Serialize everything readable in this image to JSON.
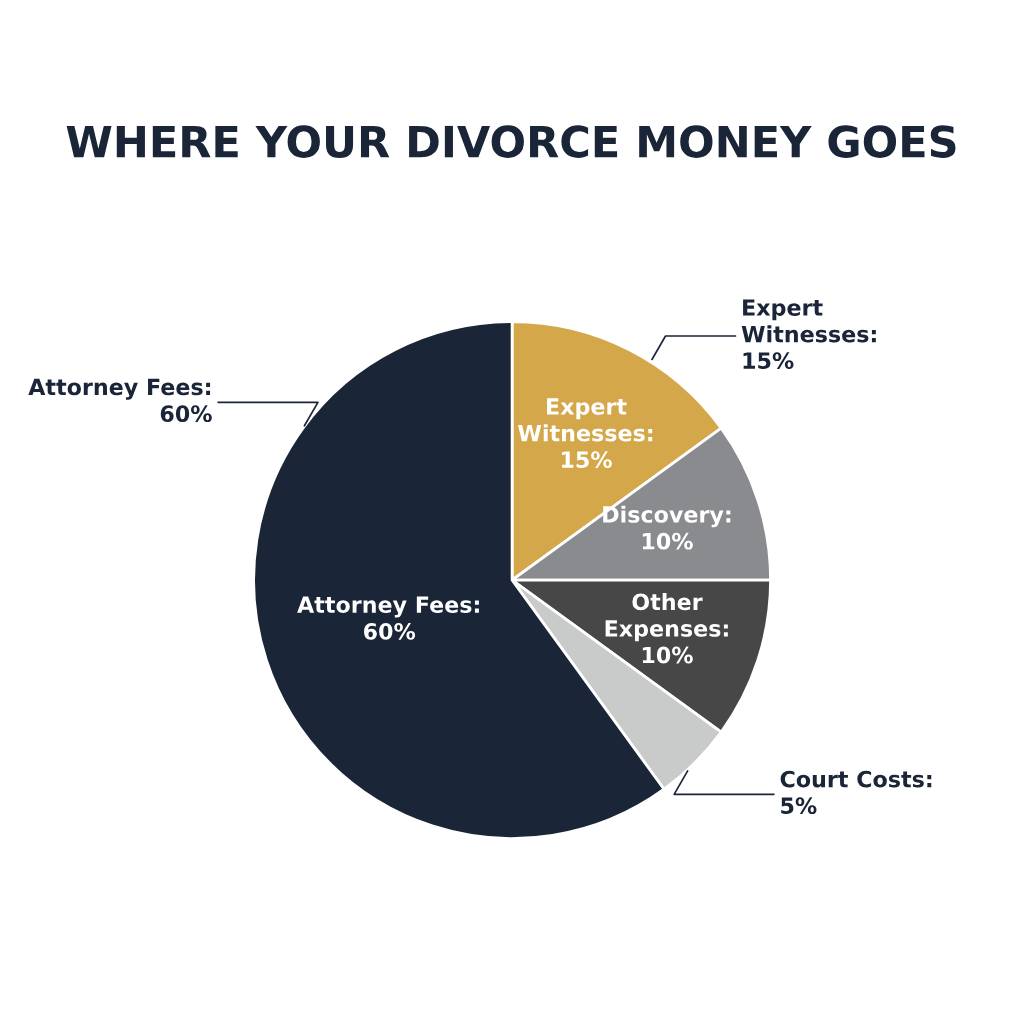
{
  "chart_data": {
    "type": "pie",
    "title": "WHERE YOUR DIVORCE MONEY GOES",
    "categories": [
      "Expert Witnesses",
      "Discovery",
      "Other Expenses",
      "Court Costs",
      "Attorney Fees"
    ],
    "values": [
      15,
      10,
      10,
      5,
      60
    ],
    "colors": [
      "#d4a84a",
      "#8a8b8e",
      "#474747",
      "#c9caca",
      "#1a2538"
    ],
    "value_labels": [
      ":\n15%",
      ":\n10%",
      ":\n10%",
      ":\n5%",
      ":\n60%"
    ]
  }
}
